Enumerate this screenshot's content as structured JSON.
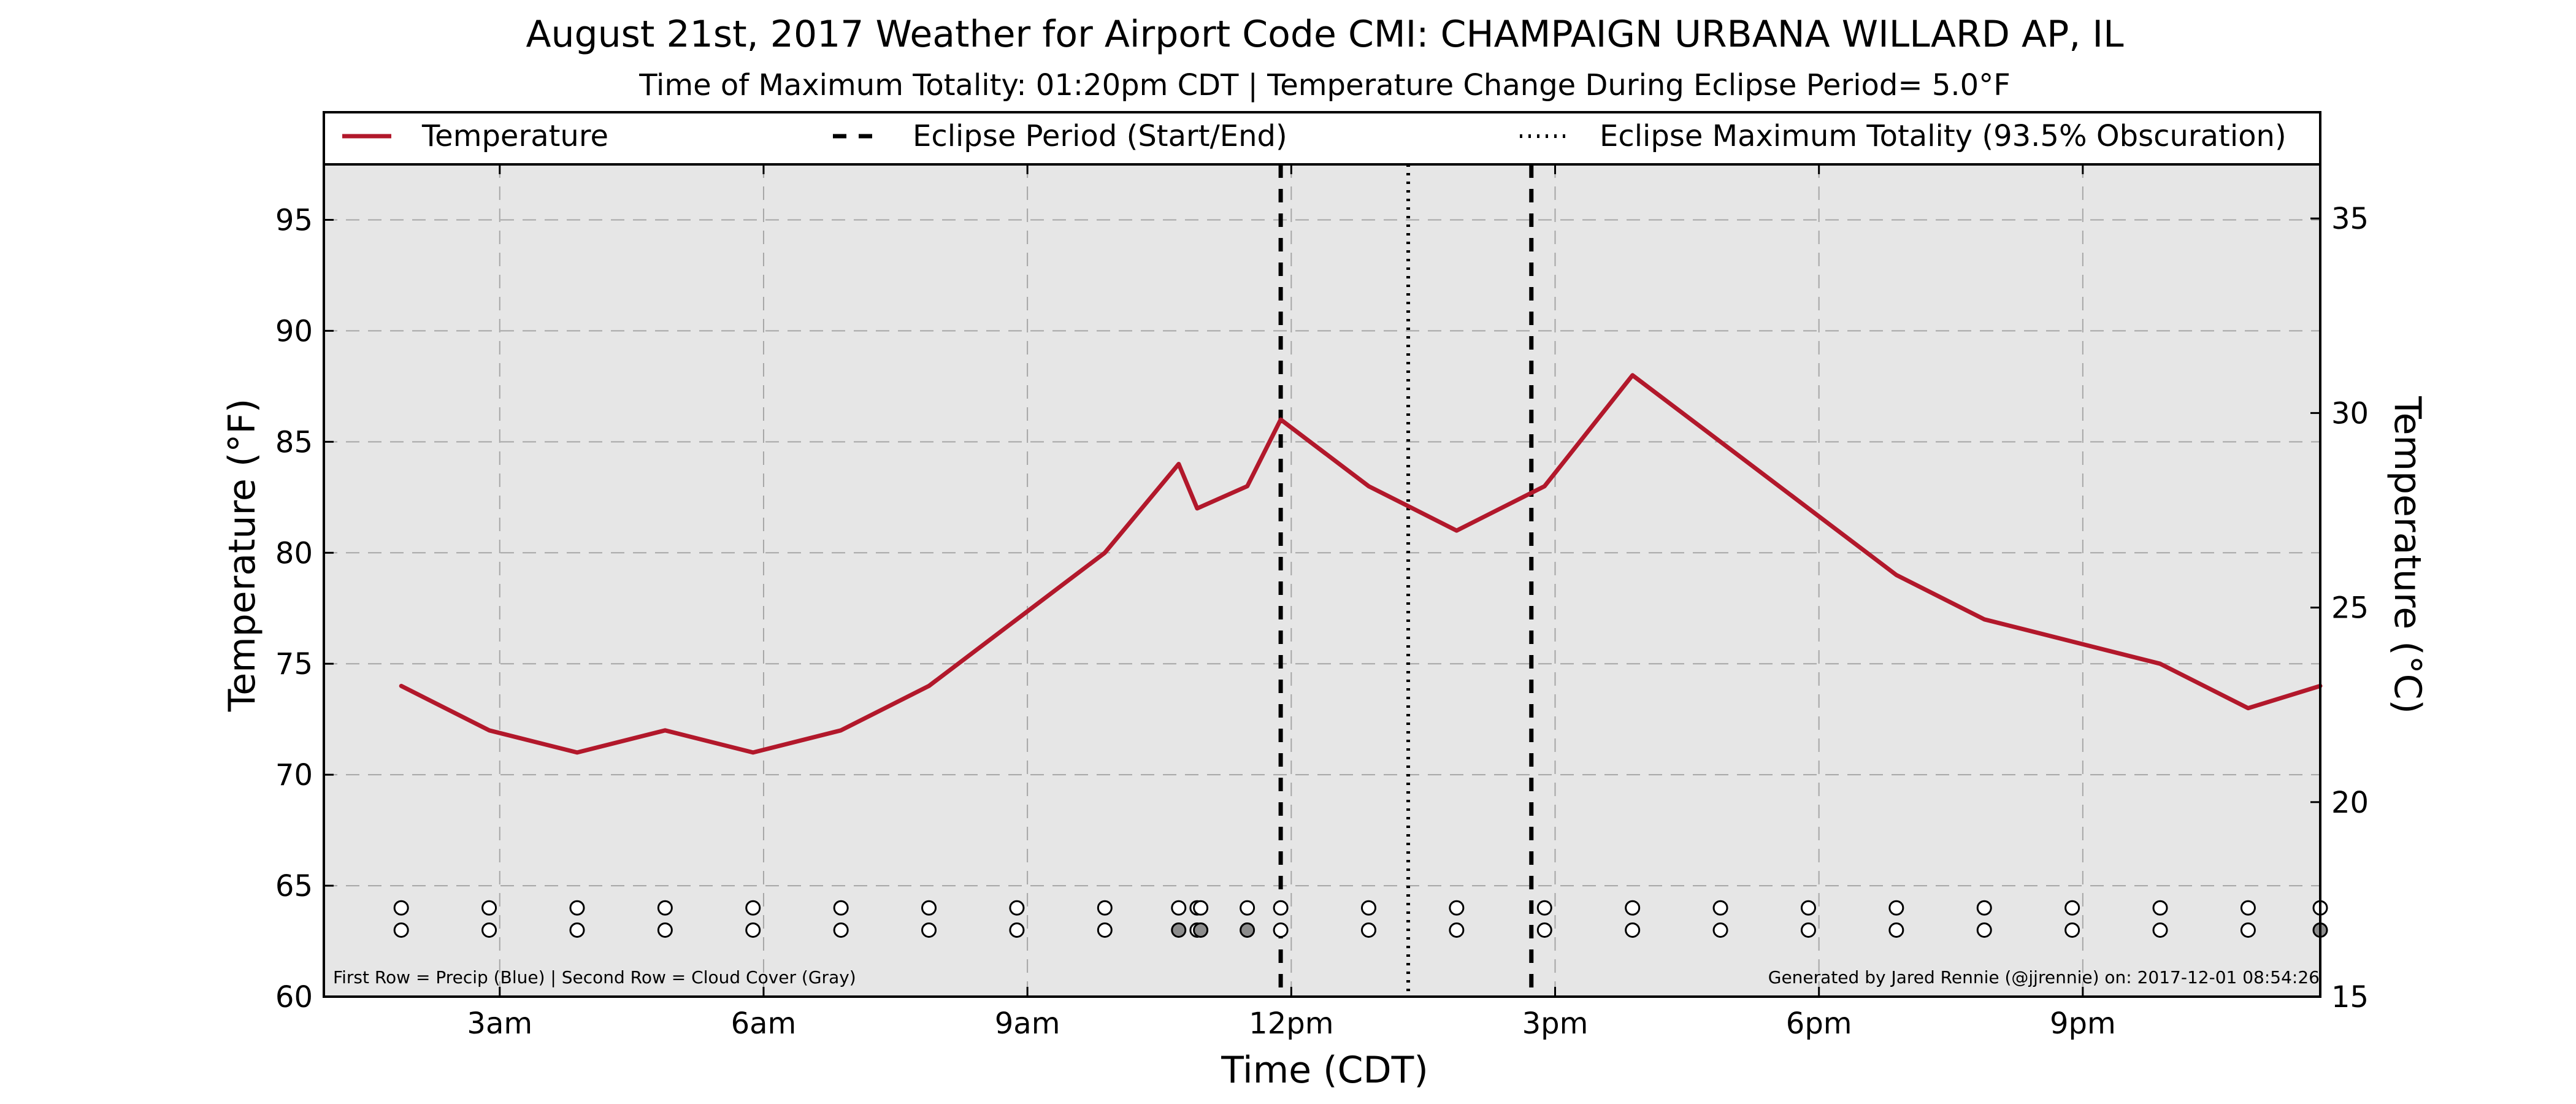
{
  "chart_data": {
    "type": "line",
    "title": "August 21st, 2017 Weather for Airport Code CMI: CHAMPAIGN URBANA WILLARD AP, IL",
    "subtitle": "Time of Maximum Totality: 01:20pm CDT | Temperature Change During Eclipse Period= 5.0°F",
    "xlabel": "Time (CDT)",
    "ylabel": "Temperature (°F)",
    "ylabel_right": "Temperature (°C)",
    "x_unit": "hours since 00:00 CDT",
    "xlim": [
      1,
      23.7
    ],
    "ylim": [
      60,
      97.5
    ],
    "ylim_right_c": [
      15,
      36.39
    ],
    "x_ticks": [
      {
        "x": 3,
        "label": "3am"
      },
      {
        "x": 6,
        "label": "6am"
      },
      {
        "x": 9,
        "label": "9am"
      },
      {
        "x": 12,
        "label": "12pm"
      },
      {
        "x": 15,
        "label": "3pm"
      },
      {
        "x": 18,
        "label": "6pm"
      },
      {
        "x": 21,
        "label": "9pm"
      }
    ],
    "y_ticks": [
      60,
      65,
      70,
      75,
      80,
      85,
      90,
      95
    ],
    "y_ticks_right": [
      15,
      20,
      25,
      30,
      35
    ],
    "grid": true,
    "legend_position": "top (above plot)",
    "series": [
      {
        "name": "Temperature",
        "color": "#b2182b",
        "x": [
          1.88,
          2.88,
          3.88,
          4.88,
          5.88,
          6.88,
          7.88,
          8.88,
          9.88,
          10.72,
          10.93,
          11.5,
          11.88,
          12.88,
          13.88,
          14.88,
          15.88,
          16.88,
          17.88,
          18.88,
          19.88,
          20.88,
          21.88,
          22.88,
          23.7
        ],
        "y": [
          74,
          72,
          71,
          72,
          71,
          72,
          74,
          77,
          80,
          84,
          82,
          83,
          86,
          83,
          81,
          83,
          88,
          85,
          82,
          79,
          77,
          76,
          75,
          73,
          74
        ]
      }
    ],
    "eclipse": {
      "label_period": "Eclipse Period (Start/End)",
      "label_max": "Eclipse Maximum Totality (93.5% Obscuration)",
      "start": 11.88,
      "end": 14.73,
      "max": 13.33
    },
    "obs_rows": {
      "times": [
        1.88,
        2.88,
        3.88,
        4.88,
        5.88,
        6.88,
        7.88,
        8.88,
        9.88,
        10.72,
        10.93,
        10.97,
        11.5,
        11.88,
        12.88,
        13.88,
        14.88,
        15.88,
        16.88,
        17.88,
        18.88,
        19.88,
        20.88,
        21.88,
        22.88,
        23.7
      ],
      "precip_y": 64,
      "cloud_y": 63,
      "precip_color": "#ffffff",
      "cloud_colors": [
        "#ffffff",
        "#ffffff",
        "#ffffff",
        "#ffffff",
        "#ffffff",
        "#ffffff",
        "#ffffff",
        "#ffffff",
        "#ffffff",
        "#8c8c8c",
        "#ffffff",
        "#8c8c8c",
        "#8c8c8c",
        "#ffffff",
        "#ffffff",
        "#ffffff",
        "#ffffff",
        "#ffffff",
        "#ffffff",
        "#ffffff",
        "#ffffff",
        "#ffffff",
        "#ffffff",
        "#ffffff",
        "#ffffff",
        "#8c8c8c"
      ]
    },
    "footnote_left": "First Row = Precip (Blue) | Second Row = Cloud Cover (Gray)",
    "footnote_right": "Generated by Jared Rennie (@jjrennie) on: 2017-12-01 08:54:26",
    "colors": {
      "plot_background": "#e6e6e6",
      "grid": "#a6a6a6",
      "temperature_line": "#b2182b"
    }
  }
}
